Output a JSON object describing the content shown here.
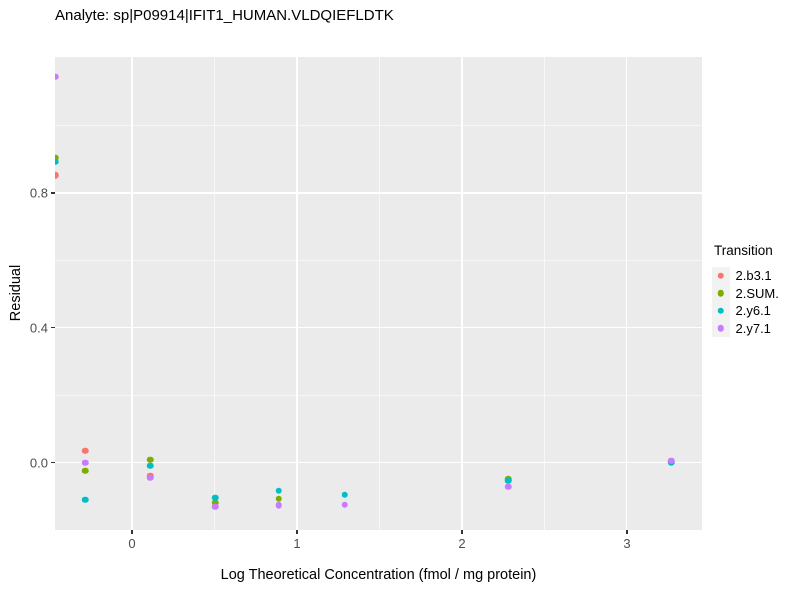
{
  "chart_data": {
    "type": "scatter",
    "title": "Analyte: sp|P09914|IFIT1_HUMAN.VLDQIEFLDTK",
    "xlabel": "Log Theoretical Concentration (fmol / mg protein)",
    "ylabel": "Residual",
    "xlim": [
      -0.467,
      3.455
    ],
    "ylim": [
      -0.199,
      1.203
    ],
    "x_ticks": {
      "values": [
        0,
        1,
        2,
        3
      ],
      "labels": [
        "0",
        "1",
        "2",
        "3"
      ]
    },
    "y_ticks": {
      "values": [
        0,
        0.4,
        0.8
      ],
      "labels": [
        "0.0",
        "0.4",
        "0.8"
      ]
    },
    "x_minor": [
      0.5,
      1.5,
      2.5
    ],
    "y_minor": [
      0.2,
      0.6,
      1.0
    ],
    "panel_bg": "#EBEBEB",
    "grid_color": "#FFFFFF",
    "tick_label_color": "#4D4D4D",
    "legend": {
      "title": "Transition",
      "position": "right",
      "key_bg": "#F2F2F2"
    },
    "series": [
      {
        "name": "2.b3.1",
        "color": "#F8766D",
        "points": [
          [
            -0.467,
            0.853
          ],
          [
            -0.285,
            0.036
          ],
          [
            0.11,
            -0.038
          ]
        ]
      },
      {
        "name": "2.SUM.",
        "color": "#7CAE00",
        "points": [
          [
            -0.467,
            0.904
          ],
          [
            -0.285,
            -0.024
          ],
          [
            0.11,
            0.009
          ],
          [
            0.503,
            -0.118
          ],
          [
            0.89,
            -0.107
          ],
          [
            2.28,
            -0.048
          ]
        ]
      },
      {
        "name": "2.y6.1",
        "color": "#00BFC4",
        "points": [
          [
            -0.467,
            0.892
          ],
          [
            -0.285,
            -0.11
          ],
          [
            0.11,
            -0.009
          ],
          [
            0.503,
            -0.104
          ],
          [
            0.89,
            -0.083
          ],
          [
            1.29,
            -0.095
          ],
          [
            2.28,
            -0.053
          ],
          [
            3.27,
            0.002
          ]
        ]
      },
      {
        "name": "2.y7.1",
        "color": "#C77CFF",
        "points": [
          [
            -0.467,
            1.144
          ],
          [
            -0.285,
            0.0
          ],
          [
            0.11,
            -0.044
          ],
          [
            0.503,
            -0.13
          ],
          [
            0.89,
            -0.125
          ],
          [
            1.29,
            -0.124
          ],
          [
            2.28,
            -0.071
          ],
          [
            3.27,
            0.006
          ]
        ]
      }
    ]
  }
}
